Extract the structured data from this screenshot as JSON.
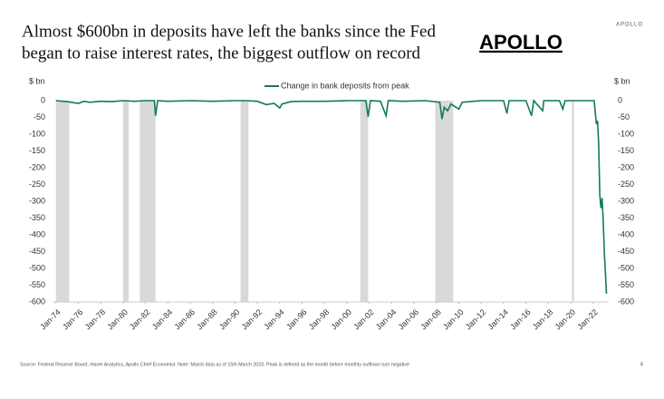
{
  "chart_data": {
    "type": "line",
    "title_lines": [
      "Almost $600bn in deposits have left the banks since the Fed",
      "began to raise interest rates, the biggest outflow on record"
    ],
    "logo": "APOLLO",
    "header_brand": "APOLLO",
    "y_axis_label": "$ bn",
    "source": "Source: Federal Reserve Board, Haver Analytics, Apollo Chief Economist. Note: March data as of 15th March 2023. Peak is defined as the month before monthly outflows turn negative",
    "page_number": "4",
    "x": [
      1974,
      1975,
      1976,
      1976.5,
      1977,
      1978,
      1979,
      1980,
      1981,
      1982,
      1982.8,
      1982.9,
      1983.1,
      1984,
      1986,
      1988,
      1990,
      1991,
      1992,
      1992.8,
      1993.5,
      1994.0,
      1994.2,
      1995,
      1996,
      1998,
      2000,
      2001.7,
      2001.9,
      2002.1,
      2003,
      2003.5,
      2003.7,
      2005,
      2007,
      2008.3,
      2008.5,
      2008.7,
      2009.0,
      2009.3,
      2010,
      2010.3,
      2011,
      2012,
      2014,
      2014.3,
      2014.5,
      2016,
      2016.5,
      2016.7,
      2017.5,
      2017.6,
      2018,
      2019,
      2019.3,
      2019.5,
      2021,
      2022.1,
      2022.3,
      2022.4,
      2022.5,
      2022.6,
      2022.7,
      2022.8,
      2022.9,
      2023.0,
      2023.2
    ],
    "series": [
      {
        "name": "Change in bank deposits from peak",
        "color": "#127a5c",
        "values": [
          0,
          -3,
          -8,
          -2,
          -5,
          -2,
          -3,
          0,
          -2,
          0,
          0,
          -45,
          0,
          -2,
          0,
          -2,
          0,
          0,
          -2,
          -12,
          -8,
          -22,
          -10,
          -3,
          -2,
          -2,
          0,
          0,
          -48,
          0,
          -2,
          -45,
          0,
          -2,
          0,
          -5,
          -55,
          -20,
          -30,
          -10,
          -25,
          -5,
          -3,
          0,
          0,
          -38,
          0,
          0,
          -45,
          0,
          -30,
          0,
          0,
          0,
          -25,
          0,
          0,
          0,
          -70,
          -60,
          -130,
          -280,
          -320,
          -290,
          -350,
          -450,
          -575
        ]
      }
    ],
    "shaded_regions": [
      [
        1974.0,
        1975.2
      ],
      [
        1980.0,
        1980.5
      ],
      [
        1981.5,
        1982.9
      ],
      [
        1990.5,
        1991.2
      ],
      [
        2001.2,
        2001.9
      ],
      [
        2007.9,
        2009.5
      ],
      [
        2020.1,
        2020.3
      ]
    ],
    "shade_color": "#d9d9d9",
    "xlim": [
      1973.7,
      2023.4
    ],
    "xticks": [
      {
        "value": 1974,
        "label": "Jan-74"
      },
      {
        "value": 1976,
        "label": "Jan-76"
      },
      {
        "value": 1978,
        "label": "Jan-78"
      },
      {
        "value": 1980,
        "label": "Jan-80"
      },
      {
        "value": 1982,
        "label": "Jan-82"
      },
      {
        "value": 1984,
        "label": "Jan-84"
      },
      {
        "value": 1986,
        "label": "Jan-86"
      },
      {
        "value": 1988,
        "label": "Jan-88"
      },
      {
        "value": 1990,
        "label": "Jan-90"
      },
      {
        "value": 1992,
        "label": "Jan-92"
      },
      {
        "value": 1994,
        "label": "Jan-94"
      },
      {
        "value": 1996,
        "label": "Jan-96"
      },
      {
        "value": 1998,
        "label": "Jan-98"
      },
      {
        "value": 2000,
        "label": "Jan-00"
      },
      {
        "value": 2002,
        "label": "Jan-02"
      },
      {
        "value": 2004,
        "label": "Jan-04"
      },
      {
        "value": 2006,
        "label": "Jan-06"
      },
      {
        "value": 2008,
        "label": "Jan-08"
      },
      {
        "value": 2010,
        "label": "Jan-10"
      },
      {
        "value": 2012,
        "label": "Jan-12"
      },
      {
        "value": 2014,
        "label": "Jan-14"
      },
      {
        "value": 2016,
        "label": "Jan-16"
      },
      {
        "value": 2018,
        "label": "Jan-18"
      },
      {
        "value": 2020,
        "label": "Jan-20"
      },
      {
        "value": 2022,
        "label": "Jan-22"
      }
    ],
    "ylim": [
      -600,
      0
    ],
    "yticks": [
      0,
      -50,
      -100,
      -150,
      -200,
      -250,
      -300,
      -350,
      -400,
      -450,
      -500,
      -550,
      -600
    ]
  }
}
